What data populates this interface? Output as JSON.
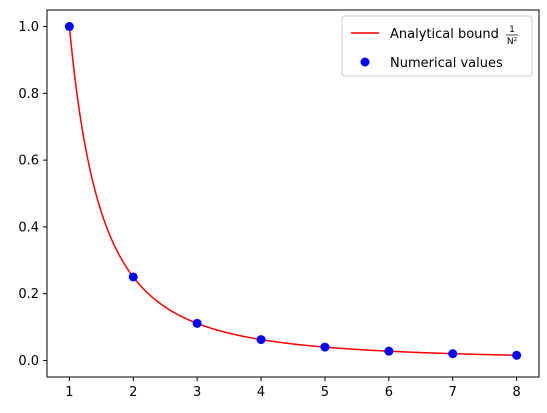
{
  "chart_data": {
    "type": "line",
    "title": "",
    "xlabel": "",
    "ylabel": "",
    "xlim": [
      0.65,
      8.35
    ],
    "ylim": [
      -0.0495,
      1.0495
    ],
    "x_ticks": [
      1,
      2,
      3,
      4,
      5,
      6,
      7,
      8
    ],
    "y_ticks": [
      0.0,
      0.2,
      0.4,
      0.6,
      0.8,
      1.0
    ],
    "x_tick_labels": [
      "1",
      "2",
      "3",
      "4",
      "5",
      "6",
      "7",
      "8"
    ],
    "y_tick_labels": [
      "0.0",
      "0.2",
      "0.4",
      "0.6",
      "0.8",
      "1.0"
    ],
    "grid": false,
    "legend_position": "top-right",
    "series": [
      {
        "name": "Analytical bound",
        "name_fraction_numerator": "1",
        "name_fraction_denominator": "N²",
        "kind": "line",
        "function": "1/x^2",
        "x_range": [
          1,
          8
        ],
        "color": "#ff0000"
      },
      {
        "name": "Numerical values",
        "kind": "scatter",
        "color": "#0000ff",
        "x": [
          1,
          2,
          3,
          4,
          5,
          6,
          7,
          8
        ],
        "y": [
          1.0,
          0.25,
          0.1111,
          0.0625,
          0.04,
          0.0278,
          0.0204,
          0.0156
        ]
      }
    ]
  }
}
